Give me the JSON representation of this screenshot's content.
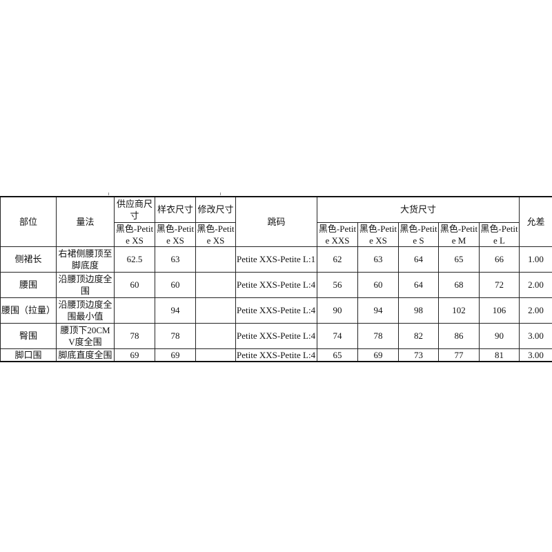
{
  "headers": {
    "part": "部位",
    "method": "量法",
    "supplier_size": "供应商尺寸",
    "sample_size": "样衣尺寸",
    "revised_size": "修改尺寸",
    "grading": "跳码",
    "bulk_size": "大货尺寸",
    "tolerance": "允差",
    "supplier_sub": "黑色-Petite XS",
    "sample_sub": "黑色-Petite XS",
    "revised_sub": "黑色-Petite XS",
    "bulk_subs": [
      "黑色-Petite XXS",
      "黑色-Petite XS",
      "黑色-Petite S",
      "黑色-Petite M",
      "黑色-Petite L"
    ]
  },
  "rows": [
    {
      "part": "侧裙长",
      "method": "右裙侧腰顶至脚底度",
      "supplier": "62.5",
      "sample": "63",
      "revised": "",
      "grading": "Petite XXS-Petite L:1",
      "bulk": [
        "62",
        "63",
        "64",
        "65",
        "66"
      ],
      "tolerance": "1.00"
    },
    {
      "part": "腰围",
      "method": "沿腰顶边度全围",
      "supplier": "60",
      "sample": "60",
      "revised": "",
      "grading": "Petite XXS-Petite L:4",
      "bulk": [
        "56",
        "60",
        "64",
        "68",
        "72"
      ],
      "tolerance": "2.00"
    },
    {
      "part": "腰围（拉量）",
      "method": "沿腰顶边度全围最小值",
      "supplier": "",
      "sample": "94",
      "revised": "",
      "grading": "Petite XXS-Petite L:4",
      "bulk": [
        "90",
        "94",
        "98",
        "102",
        "106"
      ],
      "tolerance": "2.00"
    },
    {
      "part": "臀围",
      "method": "腰顶下20CMV度全围",
      "supplier": "78",
      "sample": "78",
      "revised": "",
      "grading": "Petite XXS-Petite L:4",
      "bulk": [
        "74",
        "78",
        "82",
        "86",
        "90"
      ],
      "tolerance": "3.00"
    },
    {
      "part": "脚口围",
      "method": "脚底直度全围",
      "supplier": "69",
      "sample": "69",
      "revised": "",
      "grading": "Petite XXS-Petite L:4",
      "bulk": [
        "65",
        "69",
        "73",
        "77",
        "81"
      ],
      "tolerance": "3.00"
    }
  ]
}
